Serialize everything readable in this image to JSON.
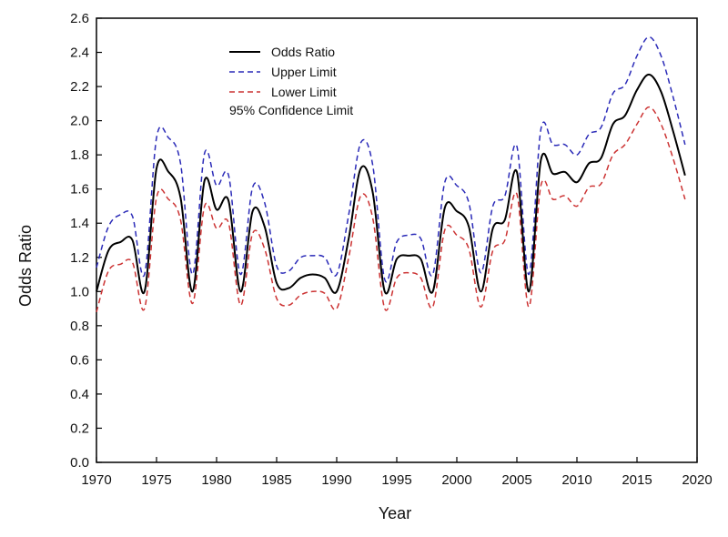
{
  "chart_data": {
    "type": "line",
    "title": "",
    "xlabel": "Year",
    "ylabel": "Odds Ratio",
    "xlim": [
      1970,
      2020
    ],
    "ylim": [
      0.0,
      2.6
    ],
    "xticks": [
      "1970",
      "1975",
      "1980",
      "1985",
      "1990",
      "1995",
      "2000",
      "2005",
      "2010",
      "2015",
      "2020"
    ],
    "yticks": [
      "0.0",
      "0.2",
      "0.4",
      "0.6",
      "0.8",
      "1.0",
      "1.2",
      "1.4",
      "1.6",
      "1.8",
      "2.0",
      "2.2",
      "2.4",
      "2.6"
    ],
    "grid": false,
    "legend_position": "top-left",
    "legend_note": "95% Confidence Limit",
    "series": [
      {
        "name": "Odds Ratio",
        "color": "#000000",
        "style": "solid",
        "x": [
          1970,
          1971,
          1972,
          1973,
          1974,
          1975,
          1976,
          1977,
          1978,
          1979,
          1980,
          1981,
          1982,
          1983,
          1984,
          1985,
          1986,
          1987,
          1988,
          1989,
          1990,
          1991,
          1992,
          1993,
          1994,
          1995,
          1996,
          1997,
          1998,
          1999,
          2000,
          2001,
          2002,
          2003,
          2004,
          2005,
          2006,
          2007,
          2008,
          2009,
          2010,
          2011,
          2012,
          2013,
          2014,
          2015,
          2016,
          2017,
          2018,
          2019
        ],
        "values": [
          1.0,
          1.24,
          1.29,
          1.3,
          1.0,
          1.72,
          1.7,
          1.55,
          1.0,
          1.65,
          1.48,
          1.53,
          1.0,
          1.47,
          1.38,
          1.05,
          1.02,
          1.08,
          1.1,
          1.08,
          1.0,
          1.31,
          1.72,
          1.58,
          1.0,
          1.19,
          1.21,
          1.19,
          1.0,
          1.49,
          1.47,
          1.38,
          1.0,
          1.37,
          1.42,
          1.7,
          1.0,
          1.77,
          1.69,
          1.7,
          1.64,
          1.75,
          1.78,
          1.98,
          2.03,
          2.18,
          2.27,
          2.17,
          1.94,
          1.68
        ]
      },
      {
        "name": "Upper Limit",
        "color": "#2b2bb8",
        "style": "dashed",
        "x": [
          1970,
          1971,
          1972,
          1973,
          1974,
          1975,
          1976,
          1977,
          1978,
          1979,
          1980,
          1981,
          1982,
          1983,
          1984,
          1985,
          1986,
          1987,
          1988,
          1989,
          1990,
          1991,
          1992,
          1993,
          1994,
          1995,
          1996,
          1997,
          1998,
          1999,
          2000,
          2001,
          2002,
          2003,
          2004,
          2005,
          2006,
          2007,
          2008,
          2009,
          2010,
          2011,
          2012,
          2013,
          2014,
          2015,
          2016,
          2017,
          2018,
          2019
        ],
        "values": [
          1.14,
          1.38,
          1.45,
          1.44,
          1.1,
          1.9,
          1.9,
          1.75,
          1.1,
          1.81,
          1.62,
          1.68,
          1.1,
          1.61,
          1.52,
          1.15,
          1.12,
          1.2,
          1.21,
          1.2,
          1.1,
          1.45,
          1.87,
          1.74,
          1.07,
          1.29,
          1.33,
          1.31,
          1.1,
          1.64,
          1.62,
          1.52,
          1.11,
          1.5,
          1.56,
          1.85,
          1.1,
          1.95,
          1.86,
          1.86,
          1.8,
          1.92,
          1.96,
          2.16,
          2.21,
          2.38,
          2.49,
          2.38,
          2.14,
          1.86
        ]
      },
      {
        "name": "Lower Limit",
        "color": "#cc3333",
        "style": "dashed",
        "x": [
          1970,
          1971,
          1972,
          1973,
          1974,
          1975,
          1976,
          1977,
          1978,
          1979,
          1980,
          1981,
          1982,
          1983,
          1984,
          1985,
          1986,
          1987,
          1988,
          1989,
          1990,
          1991,
          1992,
          1993,
          1994,
          1995,
          1996,
          1997,
          1998,
          1999,
          2000,
          2001,
          2002,
          2003,
          2004,
          2005,
          2006,
          2007,
          2008,
          2009,
          2010,
          2011,
          2012,
          2013,
          2014,
          2015,
          2016,
          2017,
          2018,
          2019
        ],
        "values": [
          0.88,
          1.12,
          1.16,
          1.17,
          0.9,
          1.55,
          1.54,
          1.42,
          0.93,
          1.5,
          1.37,
          1.4,
          0.92,
          1.34,
          1.25,
          0.96,
          0.92,
          0.98,
          1.0,
          0.99,
          0.9,
          1.2,
          1.56,
          1.43,
          0.9,
          1.08,
          1.11,
          1.08,
          0.91,
          1.36,
          1.33,
          1.25,
          0.91,
          1.24,
          1.3,
          1.57,
          0.91,
          1.62,
          1.54,
          1.56,
          1.5,
          1.61,
          1.63,
          1.8,
          1.86,
          1.98,
          2.08,
          1.98,
          1.78,
          1.54
        ]
      }
    ]
  }
}
